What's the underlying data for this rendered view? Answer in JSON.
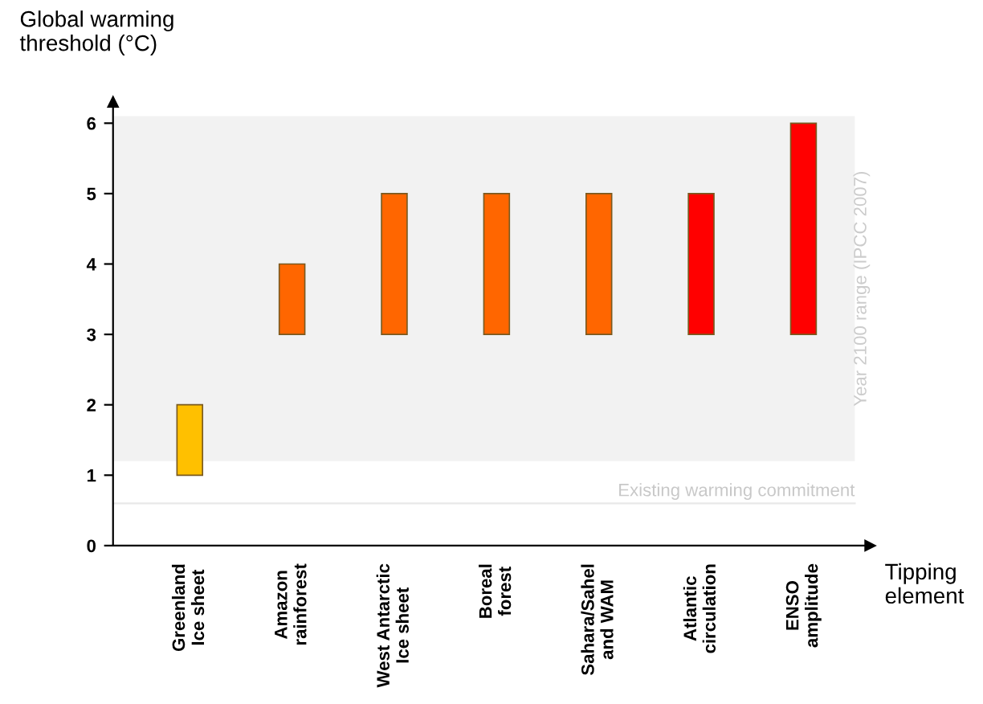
{
  "chart_data": {
    "type": "bar",
    "ylabel": "Global warming\nthreshold (°C)",
    "xlabel": "Tipping\nelement",
    "categories": [
      "Greenland\nIce sheet",
      "Amazon\nrainforest",
      "West Antarctic\nIce sheet",
      "Boreal\nforest",
      "Sahara/Sahel\nand WAM",
      "Atlantic\ncirculation",
      "ENSO\namplitude"
    ],
    "values": [
      1,
      1,
      2,
      2,
      2,
      2,
      3
    ],
    "base": [
      1,
      3,
      3,
      3,
      3,
      3,
      3
    ],
    "colors": [
      "#ffc000",
      "#ff6600",
      "#ff6600",
      "#ff6600",
      "#ff6600",
      "#ff0000",
      "#ff0000"
    ],
    "ylim": [
      0,
      6.3
    ],
    "yticks": [
      0,
      1,
      2,
      3,
      4,
      5,
      6
    ],
    "bands": [
      {
        "axis": "y",
        "from": 1.2,
        "to": 6.1,
        "label": "Year 2100 range (IPCC 2007)",
        "color": "#f2f2f2"
      }
    ],
    "ref_lines": [
      {
        "axis": "y",
        "value": 0.6,
        "label": "Existing warming commitment",
        "color": "#e8e8e8"
      }
    ],
    "grid": false,
    "legend": false
  }
}
